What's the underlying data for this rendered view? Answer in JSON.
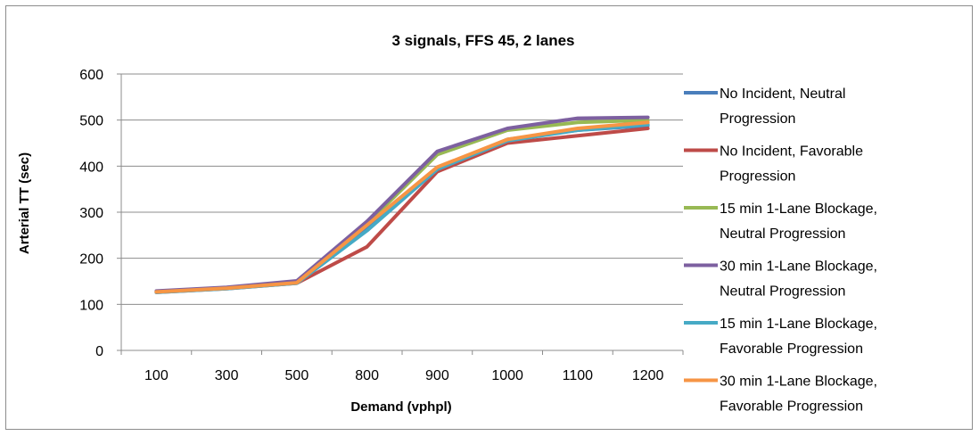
{
  "chart_data": {
    "type": "line",
    "title": "3 signals, FFS 45, 2 lanes",
    "xlabel": "Demand (vphpl)",
    "ylabel": "Arterial TT (sec)",
    "categories": [
      "100",
      "300",
      "500",
      "800",
      "900",
      "1000",
      "1100",
      "1200"
    ],
    "ylim": [
      0,
      600
    ],
    "yticks": [
      0,
      100,
      200,
      300,
      400,
      500,
      600
    ],
    "grid": true,
    "legend_position": "right",
    "series": [
      {
        "name": "No Incident, Neutral Progression",
        "label_lines": [
          "No Incident, Neutral",
          "Progression"
        ],
        "color": "#4a7ebb",
        "values": [
          127,
          135,
          148,
          265,
          395,
          458,
          478,
          488
        ]
      },
      {
        "name": "No Incident, Favorable Progression",
        "label_lines": [
          "No Incident, Favorable",
          "Progression"
        ],
        "color": "#be4b48",
        "values": [
          126,
          134,
          146,
          225,
          388,
          450,
          466,
          482
        ]
      },
      {
        "name": "15 min 1-Lane Blockage, Neutral Progression",
        "label_lines": [
          "15 min 1-Lane Blockage,",
          "Neutral Progression"
        ],
        "color": "#98b954",
        "values": [
          128,
          136,
          149,
          275,
          425,
          478,
          495,
          500
        ]
      },
      {
        "name": "30 min 1-Lane Blockage, Neutral Progression",
        "label_lines": [
          "30 min 1-Lane Blockage,",
          "Neutral Progression"
        ],
        "color": "#7d60a0",
        "values": [
          129,
          137,
          151,
          280,
          432,
          482,
          504,
          506
        ]
      },
      {
        "name": "15 min 1-Lane Blockage, Favorable Progression",
        "label_lines": [
          "15 min 1-Lane Blockage,",
          "Favorable Progression"
        ],
        "color": "#46aac5",
        "values": [
          126,
          134,
          146,
          260,
          393,
          455,
          478,
          490
        ]
      },
      {
        "name": "30 min 1-Lane Blockage, Favorable Progression",
        "label_lines": [
          "30 min 1-Lane Blockage,",
          "Favorable Progression"
        ],
        "color": "#f69545",
        "values": [
          127,
          135,
          147,
          272,
          398,
          458,
          482,
          495
        ]
      }
    ]
  }
}
